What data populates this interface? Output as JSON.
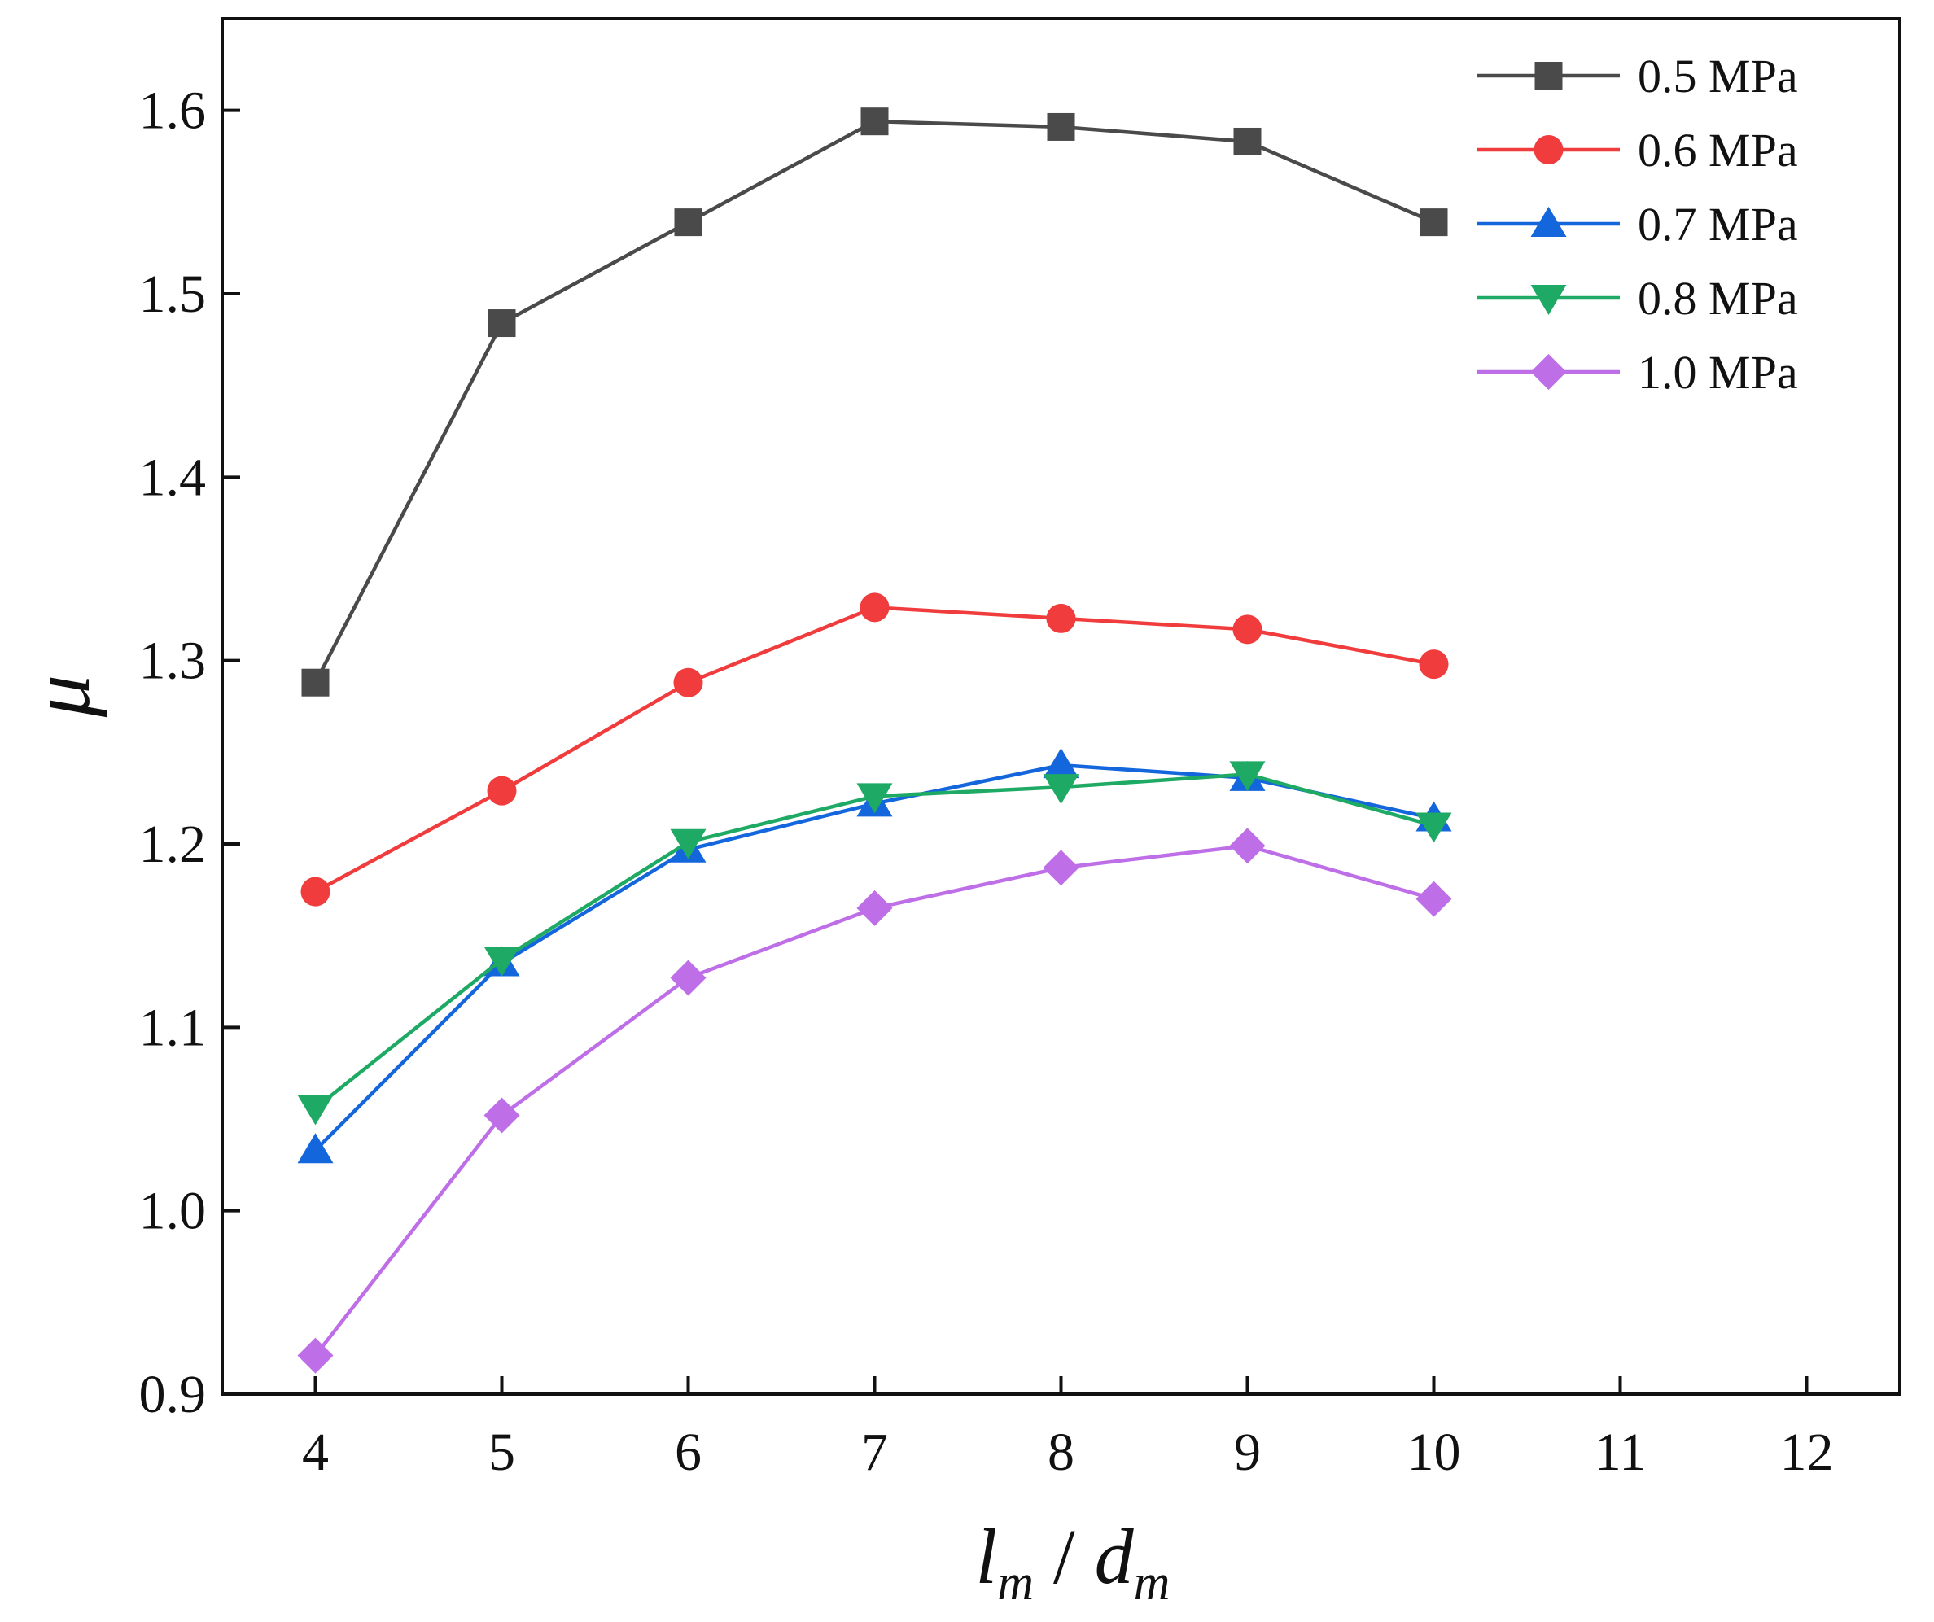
{
  "chart_data": {
    "type": "line",
    "title": "",
    "xlabel": {
      "main": "l",
      "main_sub": "m",
      "sep": " / ",
      "den": "d",
      "den_sub": "m"
    },
    "ylabel": "μ",
    "x": [
      4,
      5,
      6,
      7,
      8,
      9,
      10
    ],
    "xlim": [
      3.5,
      12.5
    ],
    "ylim": [
      0.9,
      1.65
    ],
    "xticks": [
      4,
      5,
      6,
      7,
      8,
      9,
      10,
      11,
      12
    ],
    "yticks": [
      0.9,
      1.0,
      1.1,
      1.2,
      1.3,
      1.4,
      1.5,
      1.6
    ],
    "xtick_labels": [
      "4",
      "5",
      "6",
      "7",
      "8",
      "9",
      "10",
      "11",
      "12"
    ],
    "ytick_labels": [
      "0.9",
      "1.0",
      "1.1",
      "1.2",
      "1.3",
      "1.4",
      "1.5",
      "1.6"
    ],
    "legend_position": "top-right",
    "grid": false,
    "series": [
      {
        "name": "0.5 MPa",
        "color": "#4a4a4a",
        "marker": "square",
        "values": [
          1.288,
          1.484,
          1.539,
          1.594,
          1.591,
          1.583,
          1.539
        ]
      },
      {
        "name": "0.6 MPa",
        "color": "#f03c3c",
        "marker": "circle",
        "values": [
          1.174,
          1.229,
          1.288,
          1.329,
          1.323,
          1.317,
          1.298
        ]
      },
      {
        "name": "0.7 MPa",
        "color": "#1466dc",
        "marker": "triangle-up",
        "values": [
          1.033,
          1.135,
          1.197,
          1.222,
          1.243,
          1.236,
          1.214
        ]
      },
      {
        "name": "0.8 MPa",
        "color": "#1eaa64",
        "marker": "triangle-down",
        "values": [
          1.056,
          1.137,
          1.201,
          1.226,
          1.231,
          1.238,
          1.21
        ]
      },
      {
        "name": "1.0 MPa",
        "color": "#be6ee6",
        "marker": "diamond",
        "values": [
          0.921,
          1.052,
          1.127,
          1.165,
          1.187,
          1.199,
          1.17
        ]
      }
    ]
  }
}
